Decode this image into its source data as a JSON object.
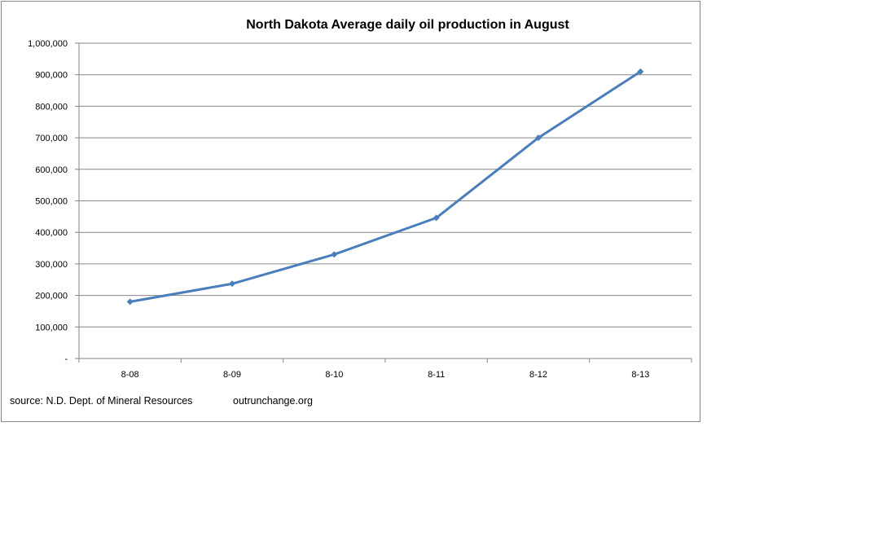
{
  "chart_data": {
    "type": "line",
    "title": "North Dakota Average daily oil production in August",
    "xlabel": "",
    "ylabel": "",
    "categories": [
      "8-08",
      "8-09",
      "8-10",
      "8-11",
      "8-12",
      "8-13"
    ],
    "series": [
      {
        "values": [
          180000,
          237000,
          330000,
          446000,
          700000,
          910000
        ]
      }
    ],
    "ylim": [
      0,
      1000000
    ],
    "yticks": [
      0,
      100000,
      200000,
      300000,
      400000,
      500000,
      600000,
      700000,
      800000,
      900000,
      1000000
    ],
    "ytick_labels": [
      "-",
      "100,000",
      "200,000",
      "300,000",
      "400,000",
      "500,000",
      "600,000",
      "700,000",
      "800,000",
      "900,000",
      "1,000,000"
    ],
    "grid": "horizontal",
    "legend": "none",
    "line_color": "#4a7ebb"
  },
  "footer": {
    "source": "source: N.D. Dept. of Mineral Resources",
    "site": "outrunchange.org"
  }
}
